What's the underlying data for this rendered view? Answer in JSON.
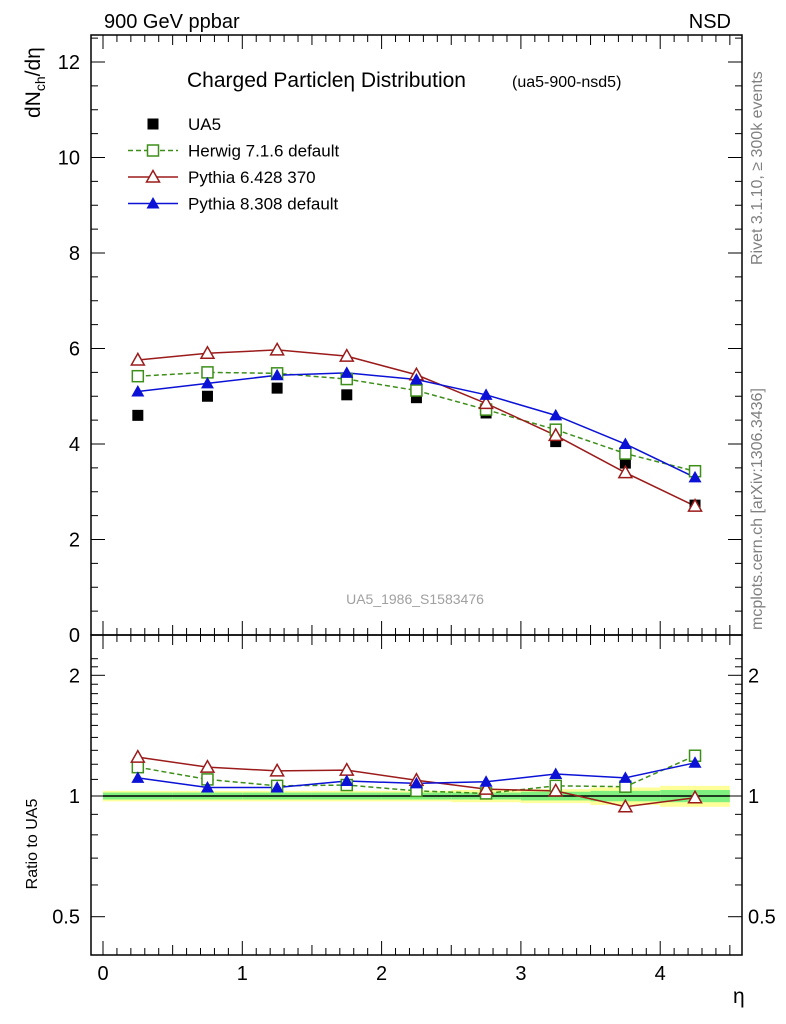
{
  "header": {
    "left": "900 GeV ppbar",
    "right": "NSD"
  },
  "side_text": {
    "rivet": "Rivet 3.1.10, ≥ 300k events",
    "mcplots": "mcplots.cern.ch [arXiv:1306.3436]"
  },
  "colors": {
    "data": "#000000",
    "herwig": "#3d8f1a",
    "pythia6": "#9b1b1b",
    "pythia8": "#0b12d6",
    "band_yellow": "#ffff99",
    "band_green": "#7ff07f"
  },
  "chart_data": [
    {
      "type": "line",
      "title": "Charged Particleη Distribution",
      "subtitle": "(ua5-900-nsd5)",
      "ylabel": "dN_ch/dη",
      "xlabel": "",
      "watermark": "UA5_1986_S1583476",
      "xlim": [
        -0.1,
        4.5
      ],
      "ylim": [
        0,
        12.5
      ],
      "yticks": [
        0,
        2,
        4,
        6,
        8,
        10,
        12
      ],
      "ytick_labels": [
        "0",
        "2",
        "4",
        "6",
        "8",
        "10",
        "12"
      ],
      "legend_position": "top-left",
      "x": [
        0.25,
        0.75,
        1.25,
        1.75,
        2.25,
        2.75,
        3.25,
        3.75,
        4.25
      ],
      "series": [
        {
          "name": "UA5",
          "key": "data",
          "marker": "square-filled",
          "line": "none",
          "values": [
            4.6,
            5.0,
            5.17,
            5.03,
            4.97,
            4.65,
            4.05,
            3.6,
            2.72
          ]
        },
        {
          "name": "Herwig 7.1.6 default",
          "key": "herwig",
          "marker": "square-open",
          "line": "dashed",
          "values": [
            5.42,
            5.5,
            5.48,
            5.36,
            5.12,
            4.72,
            4.3,
            3.8,
            3.43
          ]
        },
        {
          "name": "Pythia 6.428 370",
          "key": "pythia6",
          "marker": "triangle-open",
          "line": "solid",
          "values": [
            5.76,
            5.9,
            5.97,
            5.84,
            5.45,
            4.85,
            4.18,
            3.4,
            2.7
          ]
        },
        {
          "name": "Pythia 8.308 default",
          "key": "pythia8",
          "marker": "triangle-filled",
          "line": "solid",
          "values": [
            5.1,
            5.27,
            5.44,
            5.49,
            5.35,
            5.03,
            4.6,
            4.0,
            3.3
          ]
        }
      ]
    },
    {
      "type": "line",
      "title": "",
      "ylabel": "Ratio to UA5",
      "xlabel": "η",
      "xlim": [
        -0.1,
        4.5
      ],
      "ylim": [
        0.45,
        2.25
      ],
      "log_y": true,
      "yticks": [
        0.5,
        1,
        2
      ],
      "ytick_labels": [
        "0.5",
        "1",
        "2"
      ],
      "xticks": [
        0,
        1,
        2,
        3,
        4
      ],
      "xtick_labels": [
        "0",
        "1",
        "2",
        "3",
        "4"
      ],
      "x": [
        0.25,
        0.75,
        1.25,
        1.75,
        2.25,
        2.75,
        3.25,
        3.75,
        4.25
      ],
      "bands": {
        "x_edges": [
          0.0,
          0.5,
          1.0,
          1.5,
          2.0,
          2.5,
          3.0,
          3.5,
          4.0,
          4.5
        ],
        "green_halfwidth": [
          0.02,
          0.02,
          0.02,
          0.02,
          0.02,
          0.02,
          0.025,
          0.03,
          0.035
        ],
        "yellow_halfwidth": [
          0.03,
          0.03,
          0.03,
          0.03,
          0.03,
          0.035,
          0.04,
          0.05,
          0.06
        ]
      },
      "series": [
        {
          "name": "Herwig 7.1.6 default",
          "key": "herwig",
          "marker": "square-open",
          "line": "dashed",
          "values": [
            1.18,
            1.1,
            1.06,
            1.065,
            1.03,
            1.015,
            1.06,
            1.055,
            1.26
          ]
        },
        {
          "name": "Pythia 6.428 370",
          "key": "pythia6",
          "marker": "triangle-open",
          "line": "solid",
          "values": [
            1.25,
            1.18,
            1.155,
            1.16,
            1.095,
            1.04,
            1.03,
            0.94,
            0.99
          ]
        },
        {
          "name": "Pythia 8.308 default",
          "key": "pythia8",
          "marker": "triangle-filled",
          "line": "solid",
          "values": [
            1.11,
            1.05,
            1.05,
            1.09,
            1.075,
            1.085,
            1.135,
            1.11,
            1.21
          ]
        }
      ]
    }
  ]
}
